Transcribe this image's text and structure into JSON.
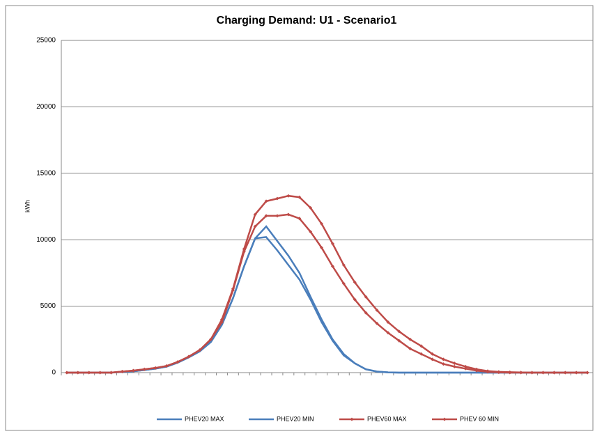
{
  "chart_data": {
    "type": "line",
    "title": "Charging Demand: U1 - Scenario1",
    "y_label": "kWh",
    "categories": [
      null,
      null,
      null,
      null,
      null,
      null,
      null,
      null,
      null,
      null,
      null,
      null,
      null,
      null,
      null,
      null,
      null,
      null,
      null,
      null,
      null,
      null,
      null,
      null,
      null,
      null,
      null,
      null,
      null,
      null,
      null,
      null,
      null,
      null,
      null,
      null,
      null,
      null,
      null,
      null,
      null,
      null,
      null,
      null,
      null,
      null,
      null,
      null
    ],
    "ylim": [
      0,
      25000
    ],
    "yticks": [
      0,
      5000,
      10000,
      15000,
      20000,
      25000
    ],
    "grid": true,
    "legend": "bottom",
    "series": [
      {
        "name": "PHEV20 MAX",
        "color": "#4a7ebb",
        "marker": false,
        "values": [
          0,
          0,
          0,
          0,
          0,
          50,
          100,
          200,
          300,
          450,
          750,
          1150,
          1600,
          2300,
          3600,
          5600,
          8000,
          10100,
          11000,
          9900,
          8800,
          7500,
          5700,
          4000,
          2500,
          1400,
          700,
          250,
          80,
          20,
          0,
          0,
          0,
          0,
          0,
          0,
          0,
          0,
          0,
          0,
          0,
          0,
          0,
          0,
          0,
          0,
          0,
          0
        ]
      },
      {
        "name": "PHEV20 MIN",
        "color": "#4a7ebb",
        "marker": false,
        "values": [
          0,
          0,
          0,
          0,
          0,
          50,
          100,
          200,
          300,
          450,
          750,
          1150,
          1600,
          2300,
          3600,
          5600,
          8000,
          10100,
          10200,
          9200,
          8100,
          7000,
          5500,
          3800,
          2400,
          1300,
          700,
          250,
          80,
          20,
          0,
          0,
          0,
          0,
          0,
          0,
          0,
          0,
          0,
          0,
          0,
          0,
          0,
          0,
          0,
          0,
          0,
          0
        ]
      },
      {
        "name": "PHEV60 MAX",
        "color": "#be4b48",
        "marker": true,
        "values": [
          0,
          0,
          0,
          0,
          0,
          80,
          150,
          250,
          350,
          500,
          800,
          1200,
          1700,
          2500,
          4000,
          6300,
          9300,
          11900,
          12900,
          13100,
          13300,
          13200,
          12400,
          11200,
          9700,
          8100,
          6800,
          5700,
          4700,
          3800,
          3100,
          2500,
          2000,
          1400,
          1000,
          700,
          450,
          250,
          120,
          60,
          30,
          10,
          0,
          0,
          0,
          0,
          0,
          0
        ]
      },
      {
        "name": "PHEV 60 MIN",
        "color": "#be4b48",
        "marker": true,
        "values": [
          0,
          0,
          0,
          0,
          0,
          80,
          150,
          250,
          350,
          500,
          800,
          1200,
          1700,
          2500,
          3800,
          6200,
          9100,
          11000,
          11800,
          11800,
          11900,
          11600,
          10600,
          9400,
          8000,
          6700,
          5500,
          4500,
          3700,
          3000,
          2400,
          1800,
          1400,
          1000,
          650,
          450,
          300,
          150,
          60,
          20,
          0,
          0,
          0,
          0,
          0,
          0,
          0,
          0
        ]
      }
    ]
  }
}
